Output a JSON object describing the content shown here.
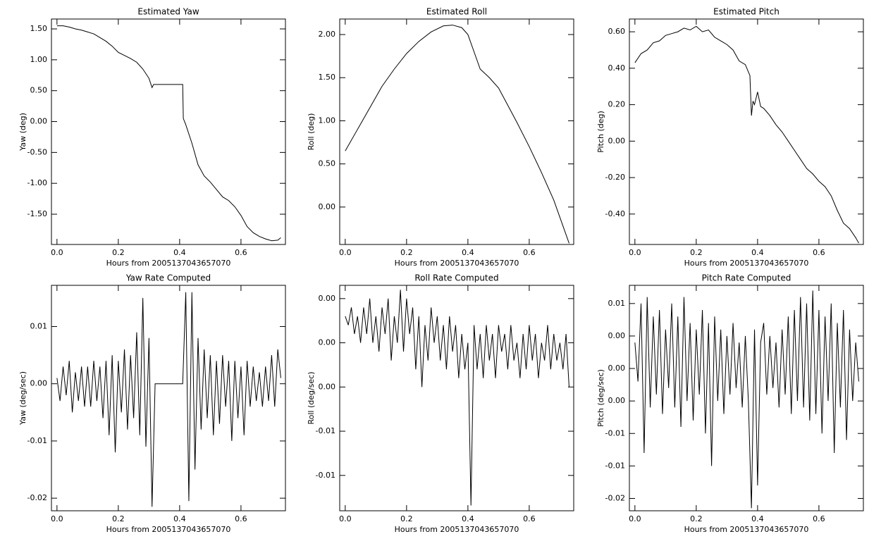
{
  "chart_data": [
    {
      "type": "line",
      "title": "Estimated Yaw",
      "xlabel": "Hours from 2005137043657070",
      "ylabel": "Yaw (deg)",
      "xlim": [
        -0.018,
        0.745
      ],
      "xticks": [
        {
          "value": 0,
          "label": "0.0"
        },
        0.2,
        0.4,
        0.6
      ],
      "ylim": [
        -1.99,
        1.66
      ],
      "yticks": [
        {
          "value": 1.5,
          "label": "1.50"
        },
        {
          "value": 1,
          "label": "1.00"
        },
        {
          "value": 0.5,
          "label": "0.50"
        },
        {
          "value": 0,
          "label": "0.00"
        },
        {
          "value": -0.5,
          "label": "-0.50"
        },
        {
          "value": -1,
          "label": "-1.00"
        },
        {
          "value": -1.5,
          "label": "-1.50"
        }
      ],
      "color": "#000000",
      "x": [
        0,
        0.02,
        0.04,
        0.06,
        0.08,
        0.1,
        0.12,
        0.14,
        0.16,
        0.18,
        0.2,
        0.22,
        0.24,
        0.26,
        0.28,
        0.3,
        0.31,
        0.315,
        0.41,
        0.412,
        0.42,
        0.44,
        0.46,
        0.48,
        0.5,
        0.52,
        0.54,
        0.56,
        0.58,
        0.6,
        0.62,
        0.64,
        0.66,
        0.68,
        0.7,
        0.72,
        0.73
      ],
      "values": [
        1.55,
        1.55,
        1.53,
        1.5,
        1.48,
        1.45,
        1.42,
        1.36,
        1.3,
        1.22,
        1.12,
        1.07,
        1.02,
        0.96,
        0.85,
        0.7,
        0.55,
        0.6,
        0.6,
        0.05,
        -0.05,
        -0.35,
        -0.7,
        -0.88,
        -0.98,
        -1.1,
        -1.22,
        -1.28,
        -1.38,
        -1.52,
        -1.7,
        -1.8,
        -1.86,
        -1.9,
        -1.93,
        -1.92,
        -1.88
      ]
    },
    {
      "type": "line",
      "title": "Estimated Roll",
      "xlabel": "Hours from 2005137043657070",
      "ylabel": "Roll (deg)",
      "xlim": [
        -0.018,
        0.745
      ],
      "xticks": [
        {
          "value": 0,
          "label": "0.0"
        },
        0.2,
        0.4,
        0.6
      ],
      "ylim": [
        -0.434,
        2.18
      ],
      "yticks": [
        {
          "value": 2,
          "label": "2.00"
        },
        {
          "value": 1.5,
          "label": "1.50"
        },
        {
          "value": 1,
          "label": "1.00"
        },
        {
          "value": 0.5,
          "label": "0.50"
        },
        {
          "value": 0,
          "label": "0.00"
        }
      ],
      "color": "#000000",
      "x": [
        0,
        0.04,
        0.08,
        0.12,
        0.16,
        0.2,
        0.24,
        0.28,
        0.32,
        0.35,
        0.38,
        0.4,
        0.42,
        0.44,
        0.47,
        0.5,
        0.53,
        0.56,
        0.6,
        0.64,
        0.68,
        0.71,
        0.73
      ],
      "values": [
        0.65,
        0.9,
        1.15,
        1.4,
        1.6,
        1.78,
        1.92,
        2.03,
        2.1,
        2.11,
        2.08,
        2.0,
        1.8,
        1.6,
        1.5,
        1.38,
        1.18,
        0.98,
        0.7,
        0.4,
        0.08,
        -0.22,
        -0.42
      ]
    },
    {
      "type": "line",
      "title": "Estimated Pitch",
      "xlabel": "Hours from 2005137043657070",
      "ylabel": "Pitch (deg)",
      "xlim": [
        -0.018,
        0.745
      ],
      "xticks": [
        {
          "value": 0,
          "label": "0.0"
        },
        0.2,
        0.4,
        0.6
      ],
      "ylim": [
        -0.567,
        0.67
      ],
      "yticks": [
        {
          "value": 0.6,
          "label": "0.60"
        },
        {
          "value": 0.4,
          "label": "0.40"
        },
        {
          "value": 0.2,
          "label": "0.20"
        },
        {
          "value": 0,
          "label": "0.00"
        },
        {
          "value": -0.2,
          "label": "-0.20"
        },
        {
          "value": -0.4,
          "label": "-0.40"
        }
      ],
      "color": "#000000",
      "x": [
        0,
        0.02,
        0.04,
        0.06,
        0.08,
        0.1,
        0.12,
        0.14,
        0.16,
        0.18,
        0.2,
        0.22,
        0.24,
        0.26,
        0.28,
        0.3,
        0.32,
        0.34,
        0.36,
        0.375,
        0.38,
        0.385,
        0.39,
        0.4,
        0.41,
        0.42,
        0.44,
        0.46,
        0.48,
        0.5,
        0.52,
        0.54,
        0.56,
        0.58,
        0.6,
        0.62,
        0.64,
        0.66,
        0.68,
        0.7,
        0.72,
        0.73
      ],
      "values": [
        0.43,
        0.48,
        0.5,
        0.54,
        0.55,
        0.58,
        0.59,
        0.6,
        0.62,
        0.61,
        0.63,
        0.6,
        0.61,
        0.57,
        0.55,
        0.53,
        0.5,
        0.44,
        0.42,
        0.36,
        0.14,
        0.22,
        0.2,
        0.27,
        0.19,
        0.18,
        0.14,
        0.09,
        0.05,
        0.0,
        -0.05,
        -0.1,
        -0.15,
        -0.18,
        -0.22,
        -0.25,
        -0.3,
        -0.38,
        -0.45,
        -0.48,
        -0.53,
        -0.56
      ]
    },
    {
      "type": "line",
      "title": "Yaw Rate Computed",
      "xlabel": "Hours from 2005137043657070",
      "ylabel": "Yaw (deg/sec)",
      "xlim": [
        -0.018,
        0.745
      ],
      "xticks": [
        {
          "value": 0,
          "label": "0.0"
        },
        0.2,
        0.4,
        0.6
      ],
      "ylim": [
        -0.0222,
        0.0172
      ],
      "yticks": [
        0.01,
        {
          "value": 0,
          "label": "0.00"
        },
        -0.01,
        -0.02
      ],
      "color": "#000000",
      "x": [
        0,
        0.01,
        0.02,
        0.03,
        0.04,
        0.05,
        0.06,
        0.07,
        0.08,
        0.09,
        0.1,
        0.11,
        0.12,
        0.13,
        0.14,
        0.15,
        0.16,
        0.17,
        0.18,
        0.19,
        0.2,
        0.21,
        0.22,
        0.23,
        0.24,
        0.25,
        0.26,
        0.27,
        0.28,
        0.29,
        0.3,
        0.31,
        0.32,
        0.33,
        0.34,
        0.35,
        0.36,
        0.37,
        0.38,
        0.39,
        0.4,
        0.41,
        0.42,
        0.43,
        0.44,
        0.45,
        0.46,
        0.47,
        0.48,
        0.49,
        0.5,
        0.51,
        0.52,
        0.53,
        0.54,
        0.55,
        0.56,
        0.57,
        0.58,
        0.59,
        0.6,
        0.61,
        0.62,
        0.63,
        0.64,
        0.65,
        0.66,
        0.67,
        0.68,
        0.69,
        0.7,
        0.71,
        0.72,
        0.73
      ],
      "values": [
        0.001,
        -0.003,
        0.003,
        -0.002,
        0.004,
        -0.005,
        0.002,
        -0.003,
        0.003,
        -0.004,
        0.003,
        -0.004,
        0.004,
        -0.003,
        0.003,
        -0.006,
        0.004,
        -0.009,
        0.005,
        -0.012,
        0.004,
        -0.005,
        0.006,
        -0.008,
        0.005,
        -0.006,
        0.009,
        -0.009,
        0.015,
        -0.011,
        0.008,
        -0.0215,
        0,
        0,
        0,
        0,
        0,
        0,
        0,
        0,
        0,
        0,
        0.016,
        -0.0205,
        0.016,
        -0.015,
        0.008,
        -0.008,
        0.006,
        -0.006,
        0.005,
        -0.009,
        0.004,
        -0.007,
        0.005,
        -0.004,
        0.004,
        -0.01,
        0.004,
        -0.006,
        0.003,
        -0.009,
        0.004,
        -0.004,
        0.003,
        -0.003,
        0.002,
        -0.004,
        0.003,
        -0.003,
        0.005,
        -0.004,
        0.006,
        0.001
      ]
    },
    {
      "type": "line",
      "title": "Roll Rate Computed",
      "xlabel": "Hours from 2005137043657070",
      "ylabel": "Roll (deg/sec)",
      "xlim": [
        -0.018,
        0.745
      ],
      "xticks": [
        {
          "value": 0,
          "label": "0.0"
        },
        0.2,
        0.4,
        0.6
      ],
      "ylim": [
        -0.019,
        0.0065
      ],
      "yticks": [
        {
          "value": 0.005,
          "label": "0.00"
        },
        {
          "value": 0,
          "label": "0.00"
        },
        {
          "value": -0.005,
          "label": "0.00"
        },
        -0.01,
        {
          "value": -0.015,
          "label": "-0.01"
        }
      ],
      "color": "#000000",
      "x": [
        0,
        0.01,
        0.02,
        0.03,
        0.04,
        0.05,
        0.06,
        0.07,
        0.08,
        0.09,
        0.1,
        0.11,
        0.12,
        0.13,
        0.14,
        0.15,
        0.16,
        0.17,
        0.18,
        0.19,
        0.2,
        0.21,
        0.22,
        0.23,
        0.24,
        0.25,
        0.26,
        0.27,
        0.28,
        0.29,
        0.3,
        0.31,
        0.32,
        0.33,
        0.34,
        0.35,
        0.36,
        0.37,
        0.38,
        0.39,
        0.4,
        0.41,
        0.42,
        0.43,
        0.44,
        0.45,
        0.46,
        0.47,
        0.48,
        0.49,
        0.5,
        0.51,
        0.52,
        0.53,
        0.54,
        0.55,
        0.56,
        0.57,
        0.58,
        0.59,
        0.6,
        0.61,
        0.62,
        0.63,
        0.64,
        0.65,
        0.66,
        0.67,
        0.68,
        0.69,
        0.7,
        0.71,
        0.72,
        0.73
      ],
      "values": [
        0.003,
        0.002,
        0.004,
        0.001,
        0.003,
        0.0,
        0.004,
        0.001,
        0.005,
        0.0,
        0.003,
        -0.001,
        0.004,
        0.001,
        0.005,
        -0.002,
        0.003,
        0.0,
        0.006,
        -0.001,
        0.005,
        0.001,
        0.004,
        -0.003,
        0.003,
        -0.005,
        0.002,
        -0.002,
        0.004,
        0.0,
        0.003,
        -0.002,
        0.002,
        -0.003,
        0.003,
        -0.001,
        0.002,
        -0.004,
        0.001,
        -0.003,
        0.0,
        -0.0184,
        0.002,
        -0.003,
        0.001,
        -0.004,
        0.002,
        -0.002,
        0.001,
        -0.004,
        0.002,
        -0.001,
        0.001,
        -0.003,
        0.002,
        -0.002,
        0.0,
        -0.004,
        0.001,
        -0.003,
        0.002,
        -0.002,
        0.001,
        -0.004,
        0.0,
        -0.002,
        0.002,
        -0.003,
        0.001,
        -0.002,
        0.0,
        -0.003,
        0.001,
        -0.005
      ]
    },
    {
      "type": "line",
      "title": "Pitch Rate Computed",
      "xlabel": "Hours from 2005137043657070",
      "ylabel": "Pitch (deg/sec)",
      "xlim": [
        -0.018,
        0.745
      ],
      "xticks": [
        {
          "value": 0,
          "label": "0.0"
        },
        0.2,
        0.4,
        0.6
      ],
      "ylim": [
        -0.0219,
        0.0128
      ],
      "yticks": [
        0.01,
        {
          "value": 0.005,
          "label": "0.00"
        },
        {
          "value": 0,
          "label": "0.00"
        },
        {
          "value": -0.005,
          "label": "0.00"
        },
        -0.01,
        {
          "value": -0.015,
          "label": "-0.01"
        },
        -0.02
      ],
      "color": "#000000",
      "x": [
        0,
        0.01,
        0.02,
        0.03,
        0.04,
        0.05,
        0.06,
        0.07,
        0.08,
        0.09,
        0.1,
        0.11,
        0.12,
        0.13,
        0.14,
        0.15,
        0.16,
        0.17,
        0.18,
        0.19,
        0.2,
        0.21,
        0.22,
        0.23,
        0.24,
        0.25,
        0.26,
        0.27,
        0.28,
        0.29,
        0.3,
        0.31,
        0.32,
        0.33,
        0.34,
        0.35,
        0.36,
        0.37,
        0.38,
        0.39,
        0.4,
        0.41,
        0.42,
        0.43,
        0.44,
        0.45,
        0.46,
        0.47,
        0.48,
        0.49,
        0.5,
        0.51,
        0.52,
        0.53,
        0.54,
        0.55,
        0.56,
        0.57,
        0.58,
        0.59,
        0.6,
        0.61,
        0.62,
        0.63,
        0.64,
        0.65,
        0.66,
        0.67,
        0.68,
        0.69,
        0.7,
        0.71,
        0.72,
        0.73
      ],
      "values": [
        0.004,
        -0.002,
        0.01,
        -0.013,
        0.011,
        -0.006,
        0.008,
        -0.004,
        0.009,
        -0.007,
        0.006,
        -0.003,
        0.01,
        -0.006,
        0.008,
        -0.009,
        0.011,
        -0.005,
        0.007,
        -0.008,
        0.006,
        -0.004,
        0.009,
        -0.01,
        0.007,
        -0.015,
        0.008,
        -0.005,
        0.006,
        -0.007,
        0.005,
        -0.004,
        0.007,
        -0.003,
        0.004,
        -0.006,
        0.005,
        -0.005,
        -0.0215,
        0.006,
        -0.018,
        0.004,
        0.007,
        -0.004,
        0.005,
        -0.003,
        0.004,
        -0.006,
        0.006,
        -0.004,
        0.008,
        -0.007,
        0.009,
        -0.005,
        0.011,
        -0.006,
        0.01,
        -0.008,
        0.012,
        -0.007,
        0.009,
        -0.01,
        0.008,
        -0.005,
        0.01,
        -0.013,
        0.007,
        -0.006,
        0.009,
        -0.011,
        0.006,
        -0.005,
        0.004,
        -0.002
      ]
    }
  ]
}
